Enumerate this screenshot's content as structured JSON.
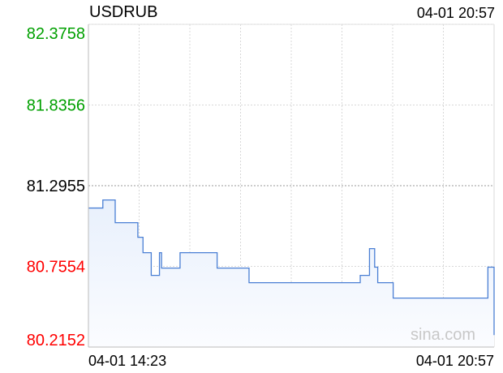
{
  "header": {
    "symbol": "USDRUB",
    "timestamp": "04-01 20:57"
  },
  "watermark": "sina.com",
  "colors": {
    "line": "#4a7fd4",
    "fill": "#e8f0fc",
    "up": "#00a000",
    "down": "#ff0000",
    "neutral": "#000000"
  },
  "chart_data": {
    "type": "line",
    "title": "USDRUB",
    "step": true,
    "prev_close": 81.2955,
    "ylim": [
      80.2152,
      82.3758
    ],
    "yticks": [
      {
        "label": "82.3758",
        "value": 82.3758,
        "color": "up"
      },
      {
        "label": "81.8356",
        "value": 81.8356,
        "color": "up"
      },
      {
        "label": "81.2955",
        "value": 81.2955,
        "color": "neutral"
      },
      {
        "label": "80.7554",
        "value": 80.7554,
        "color": "down"
      },
      {
        "label": "80.2152",
        "value": 80.2152,
        "color": "down"
      }
    ],
    "xlim": [
      "14:23",
      "20:57"
    ],
    "xtick_labels": [
      "04-01 14:23",
      "04-01 20:57"
    ],
    "grid": true,
    "points": [
      [
        "14:23",
        81.146
      ],
      [
        "14:37",
        81.2
      ],
      [
        "14:49",
        81.048
      ],
      [
        "15:11",
        80.95
      ],
      [
        "15:16",
        80.847
      ],
      [
        "15:24",
        80.695
      ],
      [
        "15:32",
        80.847
      ],
      [
        "15:34",
        80.744
      ],
      [
        "15:52",
        80.847
      ],
      [
        "16:28",
        80.744
      ],
      [
        "16:59",
        80.646
      ],
      [
        "18:47",
        80.695
      ],
      [
        "18:56",
        80.874
      ],
      [
        "19:01",
        80.75
      ],
      [
        "19:04",
        80.646
      ],
      [
        "19:19",
        80.543
      ],
      [
        "20:51",
        80.75
      ],
      [
        "20:55",
        80.75
      ],
      [
        "20:57",
        80.295
      ]
    ]
  }
}
